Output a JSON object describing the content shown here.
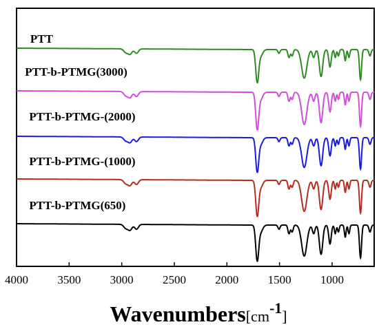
{
  "chart_data": {
    "type": "line",
    "title": "",
    "xlabel_main": "Wavenumbers",
    "xlabel_unit_open": "[cm",
    "xlabel_unit_sup": "-1",
    "xlabel_unit_close": "]",
    "ylabel": "",
    "xlim": [
      4000,
      600
    ],
    "x_reversed": true,
    "y_ticks_shown": false,
    "grid": false,
    "legend": "none",
    "x_ticks": [
      {
        "value": 4000,
        "label": "4000"
      },
      {
        "value": 3500,
        "label": "3500"
      },
      {
        "value": 3000,
        "label": "3000"
      },
      {
        "value": 2500,
        "label": "2500"
      },
      {
        "value": 2000,
        "label": "2000"
      },
      {
        "value": 1500,
        "label": "1500"
      },
      {
        "value": 1000,
        "label": "1000"
      }
    ],
    "peaks": [
      {
        "x": 2960,
        "w": 20,
        "d": 0.12
      },
      {
        "x": 2920,
        "w": 18,
        "d": 0.16
      },
      {
        "x": 2860,
        "w": 18,
        "d": 0.14
      },
      {
        "x": 1712,
        "w": 14,
        "d": 1.0
      },
      {
        "x": 1680,
        "w": 20,
        "d": 0.2
      },
      {
        "x": 1505,
        "w": 10,
        "d": 0.12
      },
      {
        "x": 1410,
        "w": 10,
        "d": 0.25
      },
      {
        "x": 1380,
        "w": 10,
        "d": 0.2
      },
      {
        "x": 1265,
        "w": 25,
        "d": 0.9
      },
      {
        "x": 1175,
        "w": 12,
        "d": 0.25
      },
      {
        "x": 1105,
        "w": 16,
        "d": 0.85
      },
      {
        "x": 1020,
        "w": 12,
        "d": 0.55
      },
      {
        "x": 970,
        "w": 8,
        "d": 0.25
      },
      {
        "x": 940,
        "w": 8,
        "d": 0.2
      },
      {
        "x": 875,
        "w": 8,
        "d": 0.35
      },
      {
        "x": 840,
        "w": 8,
        "d": 0.25
      },
      {
        "x": 730,
        "w": 10,
        "d": 0.95
      },
      {
        "x": 640,
        "w": 10,
        "d": 0.2
      }
    ],
    "series": [
      {
        "name": "PTT",
        "color": "#2e8b22",
        "label_x": 3870
      },
      {
        "name": "PTT-b-PTMG(3000)",
        "color": "#d24ddb",
        "label_x": 3920
      },
      {
        "name": "PTT-b-PTMG-(2000)",
        "color": "#1a1ae0",
        "label_x": 3880
      },
      {
        "name": "PTT-b-PTMG-(1000)",
        "color": "#b32d1e",
        "label_x": 3880
      },
      {
        "name": "PTT-b-PTMG(650)",
        "color": "#000000",
        "label_x": 3880
      }
    ]
  }
}
